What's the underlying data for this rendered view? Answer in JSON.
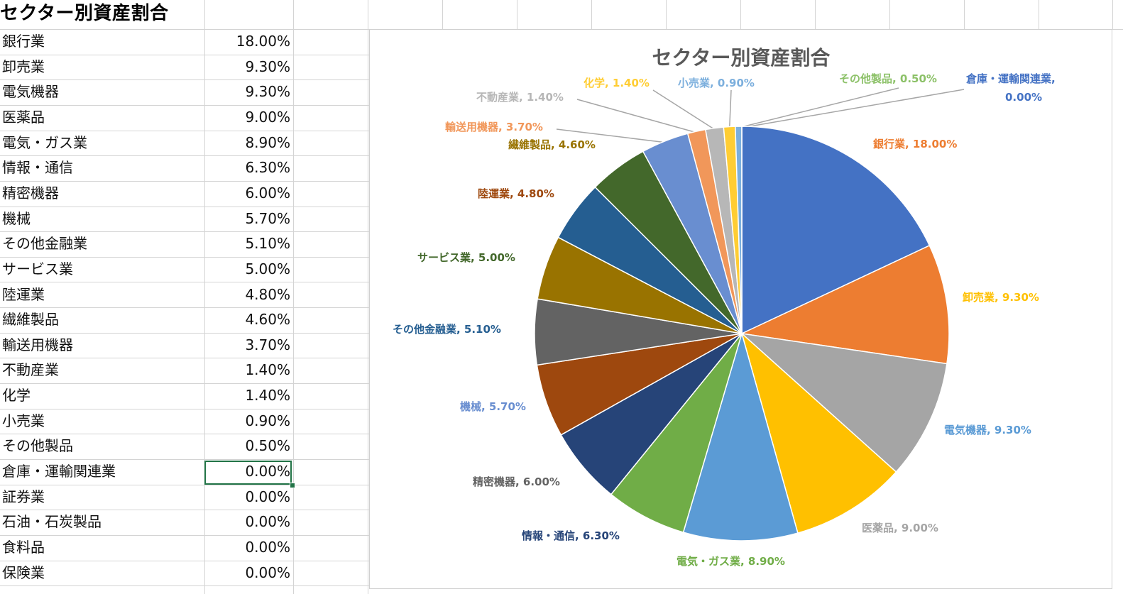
{
  "sheet": {
    "title": "セクター別資産割合",
    "rows": [
      {
        "name": "銀行業",
        "value": "18.00%"
      },
      {
        "name": "卸売業",
        "value": "9.30%"
      },
      {
        "name": "電気機器",
        "value": "9.30%"
      },
      {
        "name": "医薬品",
        "value": "9.00%"
      },
      {
        "name": "電気・ガス業",
        "value": "8.90%"
      },
      {
        "name": "情報・通信",
        "value": "6.30%"
      },
      {
        "name": "精密機器",
        "value": "6.00%"
      },
      {
        "name": "機械",
        "value": "5.70%"
      },
      {
        "name": "その他金融業",
        "value": "5.10%"
      },
      {
        "name": "サービス業",
        "value": "5.00%"
      },
      {
        "name": "陸運業",
        "value": "4.80%"
      },
      {
        "name": "繊維製品",
        "value": "4.60%"
      },
      {
        "name": "輸送用機器",
        "value": "3.70%"
      },
      {
        "name": "不動産業",
        "value": "1.40%"
      },
      {
        "name": "化学",
        "value": "1.40%"
      },
      {
        "name": "小売業",
        "value": "0.90%"
      },
      {
        "name": "その他製品",
        "value": "0.50%"
      },
      {
        "name": "倉庫・運輸関連業",
        "value": "0.00%"
      },
      {
        "name": "証券業",
        "value": "0.00%"
      },
      {
        "name": "石油・石炭製品",
        "value": "0.00%"
      },
      {
        "name": "食料品",
        "value": "0.00%"
      },
      {
        "name": "保険業",
        "value": "0.00%"
      }
    ]
  },
  "chart_data": {
    "type": "pie",
    "title": "セクター別資産割合",
    "categories": [
      "銀行業",
      "卸売業",
      "電気機器",
      "医薬品",
      "電気・ガス業",
      "情報・通信",
      "精密機器",
      "機械",
      "その他金融業",
      "サービス業",
      "陸運業",
      "繊維製品",
      "輸送用機器",
      "不動産業",
      "化学",
      "小売業",
      "その他製品",
      "倉庫・運輸関連業"
    ],
    "values": [
      18.0,
      9.3,
      9.3,
      9.0,
      8.9,
      6.3,
      6.0,
      5.7,
      5.1,
      5.0,
      4.8,
      4.6,
      3.7,
      1.4,
      1.4,
      0.9,
      0.5,
      0.0
    ],
    "data_labels": [
      "銀行業, 18.00%",
      "卸売業, 9.30%",
      "電気機器, 9.30%",
      "医薬品, 9.00%",
      "電気・ガス業, 8.90%",
      "情報・通信, 6.30%",
      "精密機器, 6.00%",
      "機械, 5.70%",
      "その他金融業, 5.10%",
      "サービス業, 5.00%",
      "陸運業, 4.80%",
      "繊維製品, 4.60%",
      "輸送用機器, 3.70%",
      "不動産業, 1.40%",
      "化学, 1.40%",
      "小売業, 0.90%",
      "その他製品, 0.50%",
      "倉庫・運輸関連業, 0.00%"
    ],
    "colors": [
      "#4472C4",
      "#ED7D31",
      "#A5A5A5",
      "#FFC000",
      "#5B9BD5",
      "#70AD47",
      "#264478",
      "#9E480E",
      "#636363",
      "#997300",
      "#255E91",
      "#43682B",
      "#698ED0",
      "#F1975A",
      "#B7B7B7",
      "#FFCD33",
      "#7CAFDD",
      "#8CC168"
    ],
    "label_colors": [
      "#ED7D31",
      "#FFC000",
      "#5B9BD5",
      "#A5A5A5",
      "#70AD47",
      "#264478",
      "#636363",
      "#698ED0",
      "#255E91",
      "#43682B",
      "#9E480E",
      "#997300",
      "#F1975A",
      "#B7B7B7",
      "#FFCD33",
      "#7CAFDD",
      "#8CC168",
      "#4472C4"
    ],
    "legend": "none",
    "start_angle": "12 o'clock",
    "direction": "clockwise"
  }
}
